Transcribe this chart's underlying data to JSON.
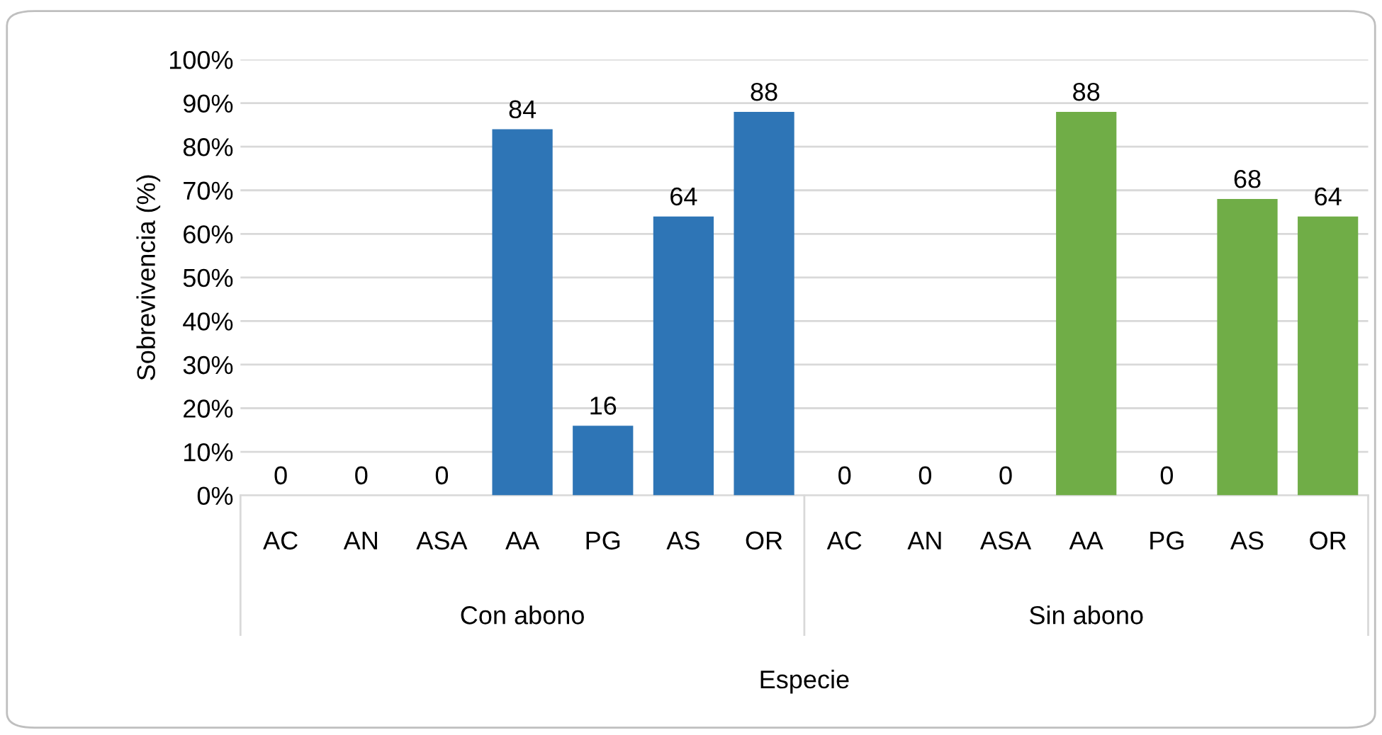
{
  "chart_data": {
    "type": "bar",
    "xlabel": "Especie",
    "ylabel": "Sobrevivencia (%)",
    "categories": [
      "AC",
      "AN",
      "ASA",
      "AA",
      "PG",
      "AS",
      "OR",
      "AC",
      "AN",
      "ASA",
      "AA",
      "PG",
      "AS",
      "OR"
    ],
    "series": [
      {
        "color": "#2e75b6",
        "values": [
          0,
          0,
          0,
          84,
          16,
          64,
          88,
          null,
          null,
          null,
          null,
          null,
          null,
          null
        ]
      },
      {
        "color": "#70ad47",
        "values": [
          null,
          null,
          null,
          null,
          null,
          null,
          null,
          0,
          0,
          0,
          88,
          0,
          68,
          64
        ]
      }
    ],
    "ylim": [
      0,
      100
    ],
    "yticks": [
      {
        "value": 0,
        "label": "0%"
      },
      {
        "value": 10,
        "label": "10%"
      },
      {
        "value": 20,
        "label": "20%"
      },
      {
        "value": 30,
        "label": "30%"
      },
      {
        "value": 40,
        "label": "40%"
      },
      {
        "value": 50,
        "label": "50%"
      },
      {
        "value": 60,
        "label": "60%"
      },
      {
        "value": 70,
        "label": "70%"
      },
      {
        "value": 80,
        "label": "80%"
      },
      {
        "value": 90,
        "label": "90%"
      },
      {
        "value": 100,
        "label": "100%"
      }
    ],
    "annotations": [
      "Con abono",
      "Sin abono"
    ],
    "grid": "y",
    "legend": false,
    "data_labels": true
  }
}
